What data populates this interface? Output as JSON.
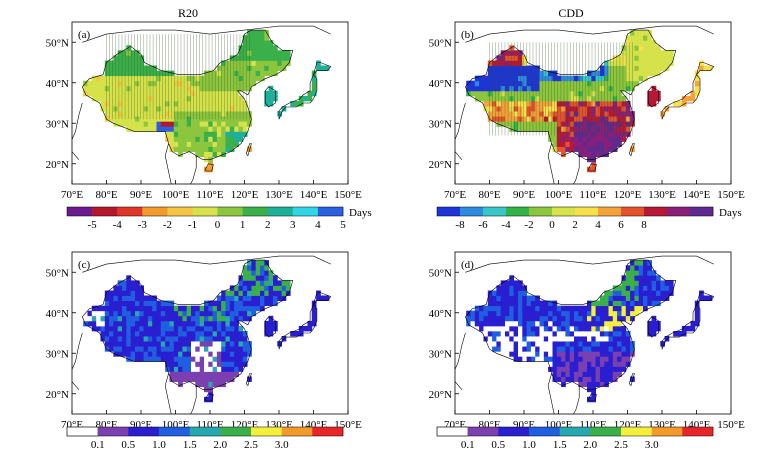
{
  "panels": [
    {
      "id": "a",
      "title": "R20",
      "label": "(a)",
      "legend": {
        "colors": [
          "#6b1b8f",
          "#b5172b",
          "#e0362a",
          "#f39a2c",
          "#f4c542",
          "#d6e24a",
          "#8cc63e",
          "#3bb04a",
          "#1fb09a",
          "#2fd7e6",
          "#2a5fe0"
        ],
        "labels": [
          "-5",
          "-4",
          "-3",
          "-2",
          "-1",
          "0",
          "1",
          "2",
          "3",
          "4",
          "5"
        ],
        "unit": "Days"
      }
    },
    {
      "id": "b",
      "title": "CDD",
      "label": "(b)",
      "legend": {
        "colors": [
          "#1e35d6",
          "#2f8be0",
          "#36c7c9",
          "#33b24a",
          "#8cc63e",
          "#d6e24a",
          "#f7e04a",
          "#f3a23a",
          "#e5532c",
          "#b51936",
          "#8a1f7a",
          "#5e2a8f"
        ],
        "labels": [
          "-8",
          "-6",
          "-4",
          "-2",
          "0",
          "2",
          "4",
          "6",
          "8"
        ],
        "unit": "Days"
      }
    },
    {
      "id": "c",
      "title": "",
      "label": "(c)",
      "legend": {
        "colors": [
          "#ffffff",
          "#7b3fb0",
          "#2a1fd0",
          "#1f5fe0",
          "#27a8b0",
          "#3bb04a",
          "#f4ef3a",
          "#f39a2c",
          "#e7262a"
        ],
        "labels": [
          "0.1",
          "0.5",
          "1.0",
          "1.5",
          "2.0",
          "2.5",
          "3.0"
        ],
        "unit": ""
      }
    },
    {
      "id": "d",
      "title": "",
      "label": "(d)",
      "legend": {
        "colors": [
          "#ffffff",
          "#7b3fb0",
          "#2a1fd0",
          "#1f5fe0",
          "#27a8b0",
          "#3bb04a",
          "#f4ef3a",
          "#f39a2c",
          "#e7262a"
        ],
        "labels": [
          "0.1",
          "0.5",
          "1.0",
          "1.5",
          "2.0",
          "2.5",
          "3.0"
        ],
        "unit": ""
      }
    }
  ],
  "axes": {
    "x_ticks": [
      "70°E",
      "80°E",
      "90°E",
      "100°E",
      "110°E",
      "120°E",
      "130°E",
      "140°E",
      "150°E"
    ],
    "y_ticks": [
      "20°N",
      "30°N",
      "40°N",
      "50°N"
    ]
  }
}
